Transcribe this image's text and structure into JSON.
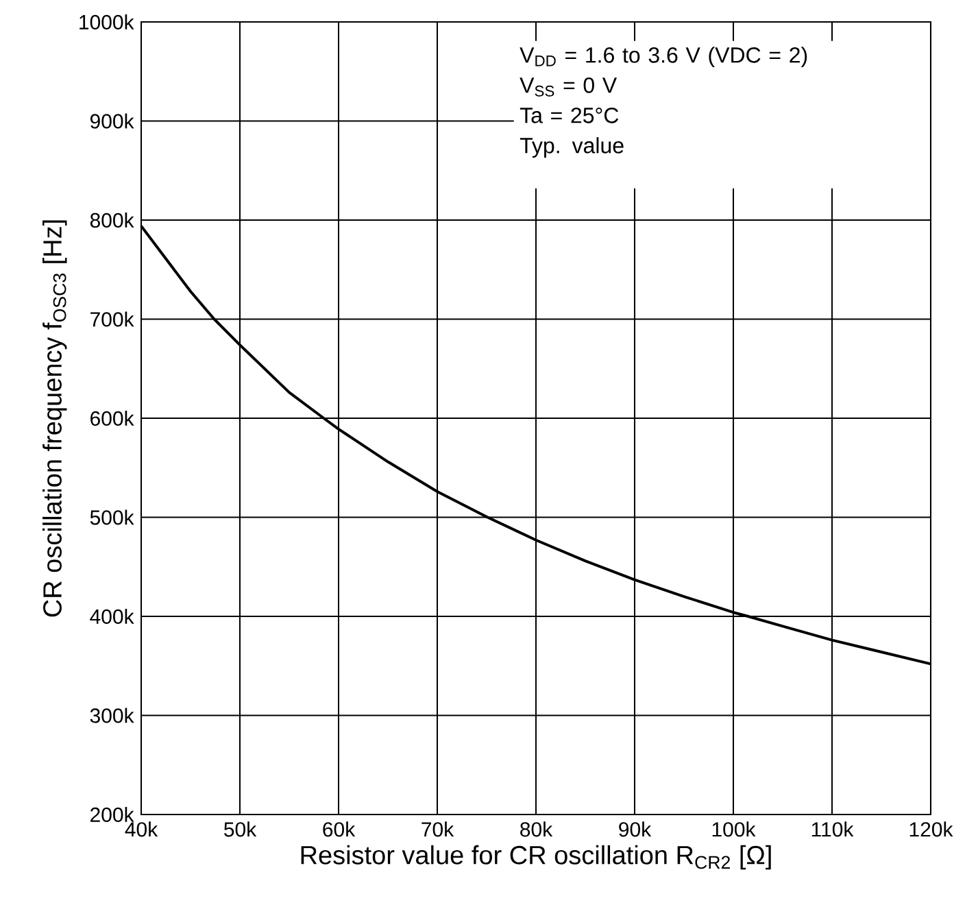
{
  "chart_data": {
    "type": "line",
    "xlabel": "Resistor value for CR oscillation R$_{CR2}$ [Ω]",
    "ylabel": "CR oscillation frequency f$_{OSC3}$ [Hz]",
    "annotations": [
      "V$_{DD}$ = 1.6 to 3.6 V (VDC = 2)",
      "V$_{SS}$ = 0 V",
      "Ta = 25°C",
      "Typ. value"
    ],
    "series": [
      {
        "color": "#000000",
        "x": [
          40000,
          45000,
          47400,
          50000,
          55000,
          58500,
          60000,
          65000,
          70000,
          75100,
          80000,
          85000,
          90000,
          95000,
          100000,
          101500,
          105000,
          110000,
          115000,
          120000
        ],
        "values": [
          794000,
          728000,
          700000,
          674000,
          626000,
          600000,
          589000,
          556000,
          526000,
          500000,
          477000,
          456000,
          437000,
          420000,
          404000,
          400000,
          390000,
          376000,
          364000,
          352000
        ]
      }
    ],
    "xlim": [
      40000,
      120000
    ],
    "xticks": [
      {
        "value": 40000,
        "label": "40k"
      },
      {
        "value": 50000,
        "label": "50k"
      },
      {
        "value": 60000,
        "label": "60k"
      },
      {
        "value": 70000,
        "label": "70k"
      },
      {
        "value": 80000,
        "label": "80k"
      },
      {
        "value": 90000,
        "label": "90k"
      },
      {
        "value": 100000,
        "label": "100k"
      },
      {
        "value": 110000,
        "label": "110k"
      },
      {
        "value": 120000,
        "label": "120k"
      }
    ],
    "ylim": [
      200000,
      1000000
    ],
    "yticks": [
      {
        "value": 200000,
        "label": "200k"
      },
      {
        "value": 300000,
        "label": "300k"
      },
      {
        "value": 400000,
        "label": "400k"
      },
      {
        "value": 500000,
        "label": "500k"
      },
      {
        "value": 600000,
        "label": "600k"
      },
      {
        "value": 700000,
        "label": "700k"
      },
      {
        "value": 800000,
        "label": "800k"
      },
      {
        "value": 900000,
        "label": "900k"
      },
      {
        "value": 1000000,
        "label": "1000k"
      }
    ],
    "grid": true,
    "marker": "none",
    "line_style": "solid"
  }
}
